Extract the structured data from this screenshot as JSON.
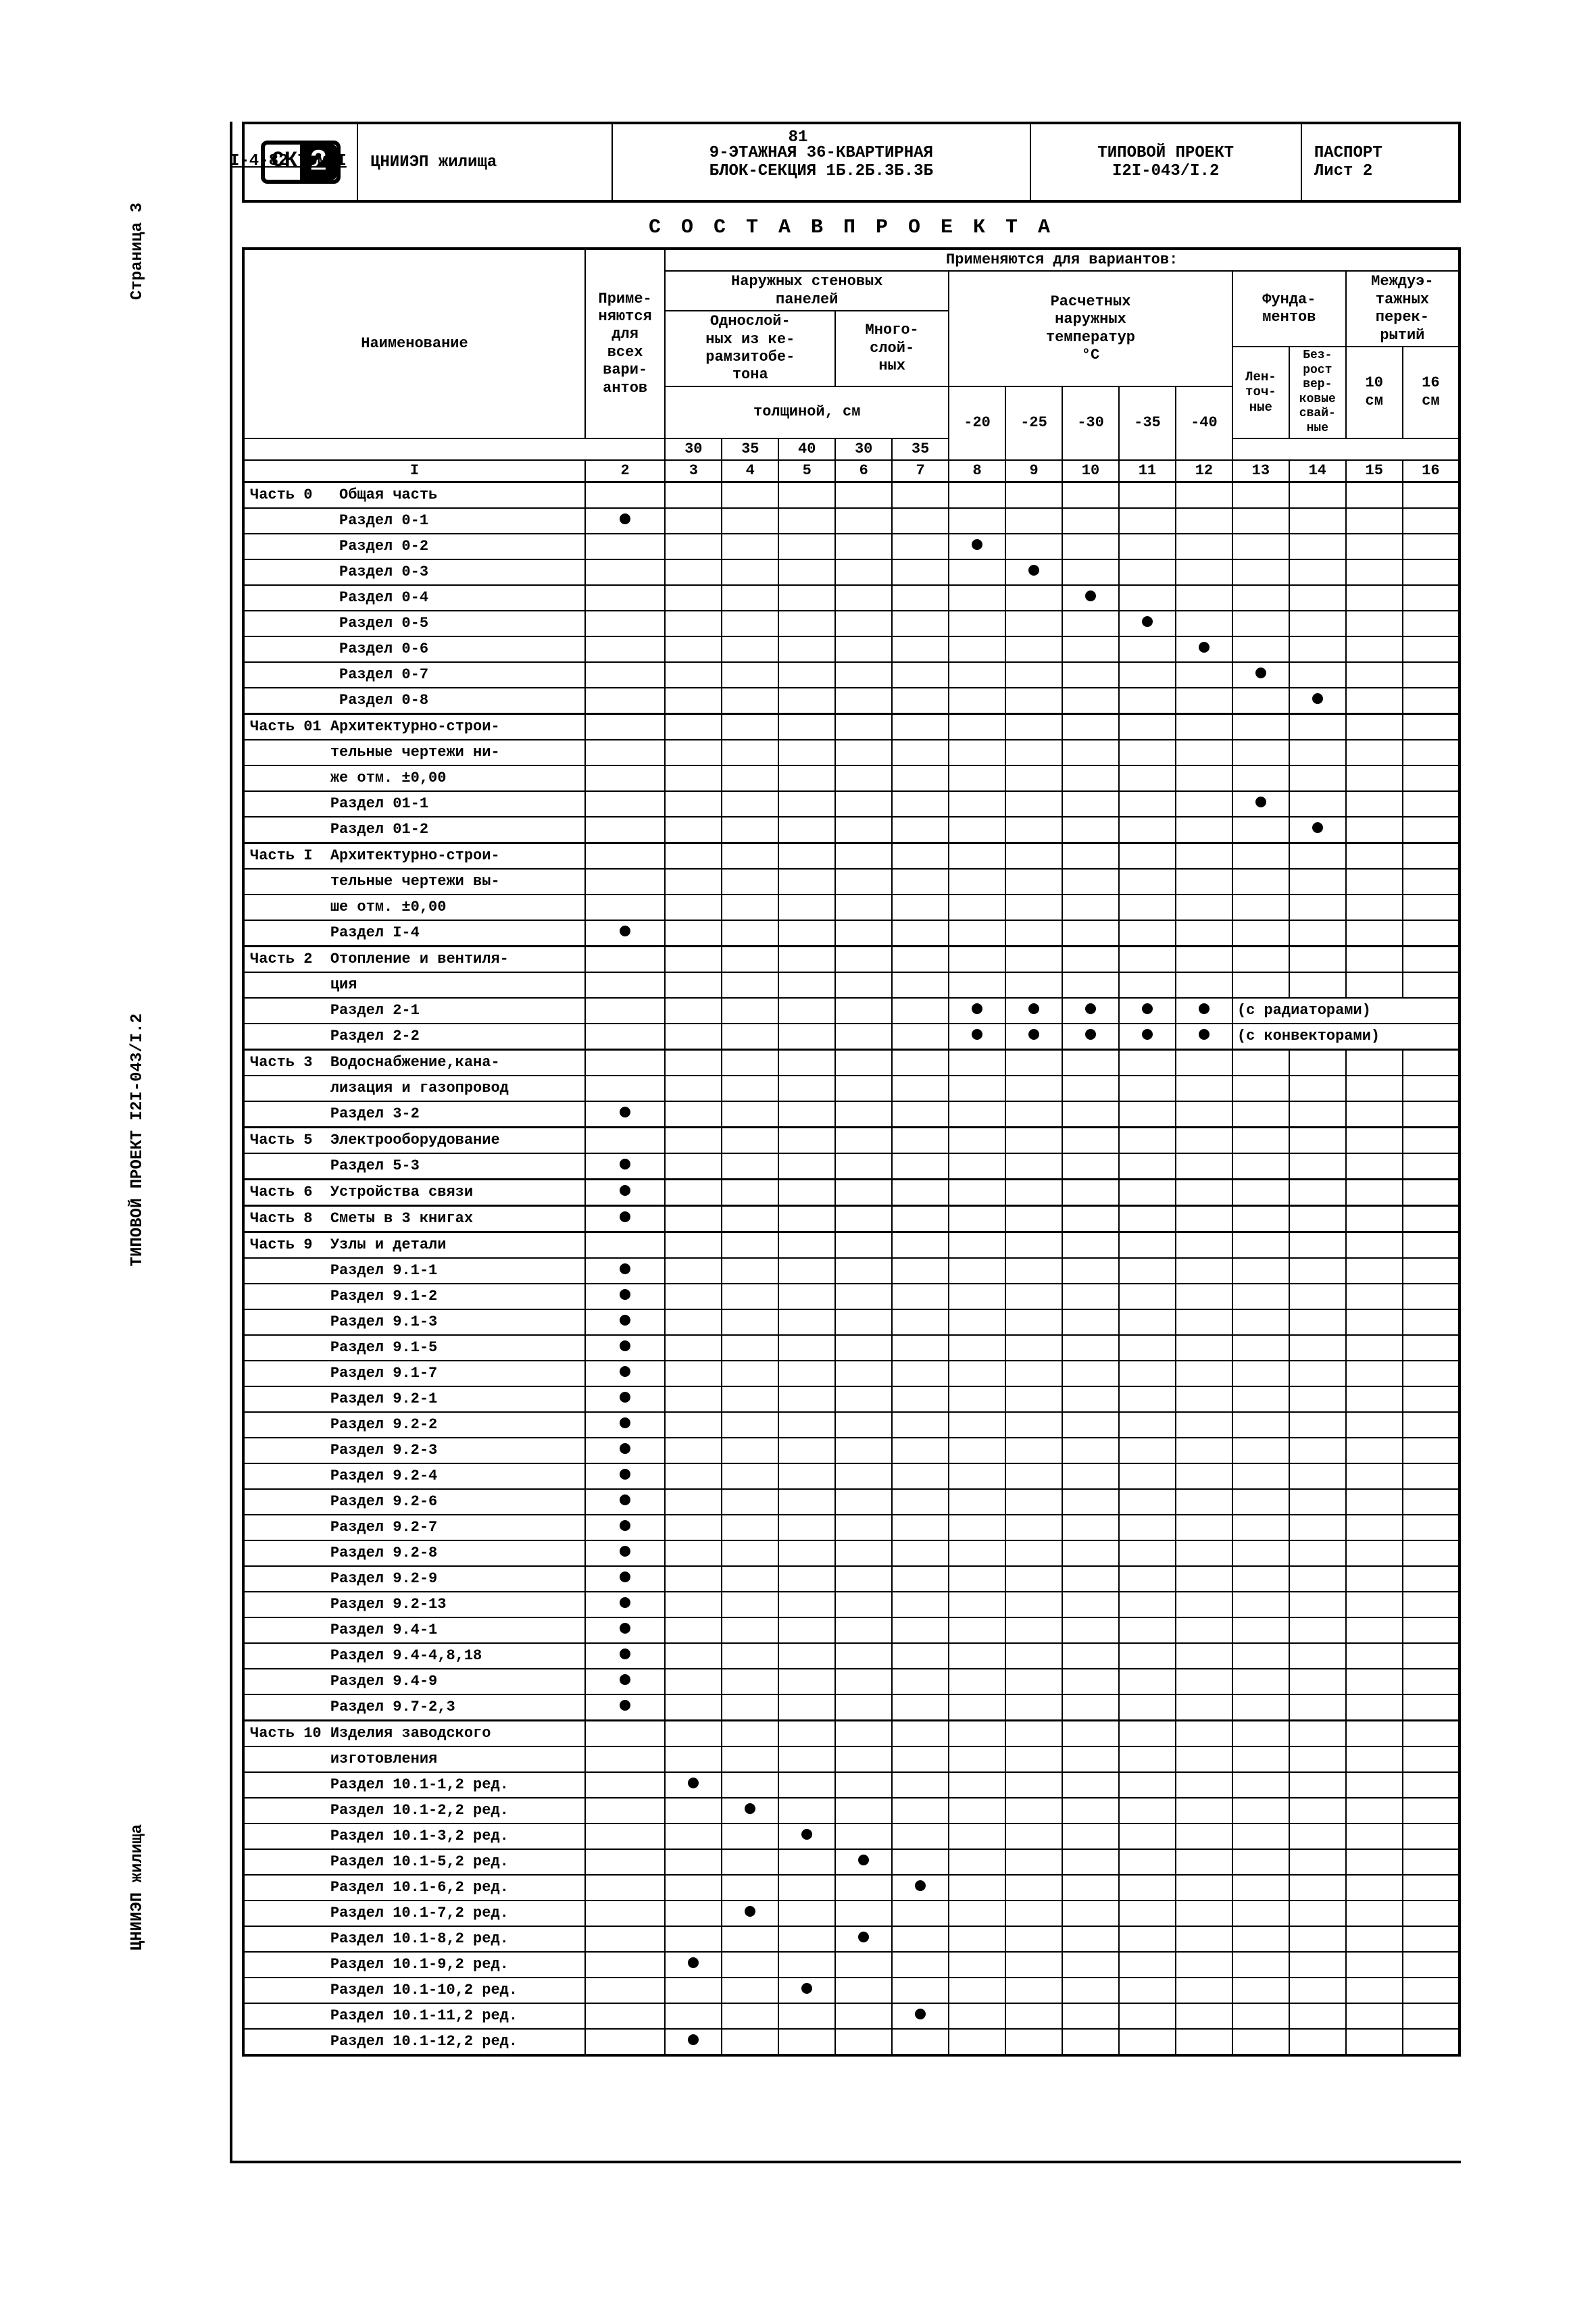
{
  "page_number": "81",
  "doc_number": "I-4-82 Том I",
  "side_labels": {
    "top": "Страница 3",
    "middle": "ТИПОВОЙ ПРОЕКТ I2I-043/I.2",
    "bottom": "ЦНИИЭП жилища"
  },
  "titleblock": {
    "org": "ЦНИИЭП жилища",
    "name1": "9-ЭТАЖНАЯ 36-КВАРТИРНАЯ",
    "name2": "БЛОК-СЕКЦИЯ 1Б.2Б.3Б.3Б",
    "proj1": "ТИПОВОЙ ПРОЕКТ",
    "proj2": "I2I-043/I.2",
    "pass1": "ПАСПОРТ",
    "pass2": "Лист  2"
  },
  "section_title": "С О С Т А В   П Р О Е К Т А",
  "header": {
    "col_name": "Наименование",
    "col_all": "Приме-\nняются\nдля\nвсех\nвари-\nантов",
    "variants": "Применяются для вариантов:",
    "panels": "Наружных стеновых\nпанелей",
    "panels_a": "Однослой-\nных из ке-\nрамзитобе-\nтона",
    "panels_b": "Много-\nслой-\nных",
    "thickness": "толщиной, см",
    "t30": "30",
    "t35": "35",
    "t40": "40",
    "mb30": "30",
    "mb35": "35",
    "temps": "Расчетных\nнаружных\nтемператур\n°C",
    "tm20": "-20",
    "tm25": "-25",
    "tm30": "-30",
    "tm35": "-35",
    "tm40": "-40",
    "found": "Фунда-\nментов",
    "found_a": "Лен-\nточ-\nные",
    "found_b": "Без-\nрост\nвер-\nковые\nсвай-\nные",
    "floors": "Междуэ-\nтажных\nперек-\nрытий",
    "fl_a": "10\nсм",
    "fl_b": "16\nсм",
    "nums": [
      "I",
      "2",
      "3",
      "4",
      "5",
      "6",
      "7",
      "8",
      "9",
      "10",
      "11",
      "12",
      "13",
      "14",
      "15",
      "16"
    ]
  },
  "note_radiators": "(с радиаторами)",
  "note_convectors": "(с конвекторами)",
  "rows": [
    {
      "label": "Часть 0   Общая часть",
      "first": true
    },
    {
      "label": "          Раздел 0-1",
      "dots": [
        2
      ]
    },
    {
      "label": "          Раздел 0-2",
      "dots": [
        8
      ]
    },
    {
      "label": "          Раздел 0-3",
      "dots": [
        9
      ]
    },
    {
      "label": "          Раздел 0-4",
      "dots": [
        10
      ]
    },
    {
      "label": "          Раздел 0-5",
      "dots": [
        11
      ]
    },
    {
      "label": "          Раздел 0-6",
      "dots": [
        12
      ]
    },
    {
      "label": "          Раздел 0-7",
      "dots": [
        13
      ]
    },
    {
      "label": "          Раздел 0-8",
      "dots": [
        14
      ]
    },
    {
      "label": "Часть 01 Архитектурно-строи-",
      "first": true
    },
    {
      "label": "         тельные чертежи ни-"
    },
    {
      "label": "         же отм. ±0,00"
    },
    {
      "label": "         Раздел 01-1",
      "dots": [
        13
      ]
    },
    {
      "label": "         Раздел 01-2",
      "dots": [
        14
      ]
    },
    {
      "label": "Часть I  Архитектурно-строи-",
      "first": true
    },
    {
      "label": "         тельные чертежи вы-"
    },
    {
      "label": "         ше отм. ±0,00"
    },
    {
      "label": "         Раздел I-4",
      "dots": [
        2
      ]
    },
    {
      "label": "Часть 2  Отопление и вентиля-",
      "first": true
    },
    {
      "label": "         ция"
    },
    {
      "label": "         Раздел 2-1",
      "dots": [
        8,
        9,
        10,
        11,
        12
      ],
      "note": "note_radiators",
      "notecol": 13
    },
    {
      "label": "         Раздел 2-2",
      "dots": [
        8,
        9,
        10,
        11,
        12
      ],
      "note": "note_convectors",
      "notecol": 13
    },
    {
      "label": "Часть 3  Водоснабжение,кана-",
      "first": true
    },
    {
      "label": "         лизация и газопровод"
    },
    {
      "label": "         Раздел 3-2",
      "dots": [
        2
      ]
    },
    {
      "label": "Часть 5  Электрооборудование",
      "first": true
    },
    {
      "label": "         Раздел 5-3",
      "dots": [
        2
      ]
    },
    {
      "label": "Часть 6  Устройства связи",
      "dots": [
        2
      ],
      "first": true
    },
    {
      "label": "Часть 8  Сметы в 3 книгах",
      "dots": [
        2
      ],
      "first": true
    },
    {
      "label": "Часть 9  Узлы и детали",
      "first": true
    },
    {
      "label": "         Раздел 9.1-1",
      "dots": [
        2
      ]
    },
    {
      "label": "         Раздел 9.1-2",
      "dots": [
        2
      ]
    },
    {
      "label": "         Раздел 9.1-3",
      "dots": [
        2
      ]
    },
    {
      "label": "         Раздел 9.1-5",
      "dots": [
        2
      ]
    },
    {
      "label": "         Раздел 9.1-7",
      "dots": [
        2
      ]
    },
    {
      "label": "         Раздел 9.2-1",
      "dots": [
        2
      ]
    },
    {
      "label": "         Раздел 9.2-2",
      "dots": [
        2
      ]
    },
    {
      "label": "         Раздел 9.2-3",
      "dots": [
        2
      ]
    },
    {
      "label": "         Раздел 9.2-4",
      "dots": [
        2
      ]
    },
    {
      "label": "         Раздел 9.2-6",
      "dots": [
        2
      ]
    },
    {
      "label": "         Раздел 9.2-7",
      "dots": [
        2
      ]
    },
    {
      "label": "         Раздел 9.2-8",
      "dots": [
        2
      ]
    },
    {
      "label": "         Раздел 9.2-9",
      "dots": [
        2
      ]
    },
    {
      "label": "         Раздел 9.2-13",
      "dots": [
        2
      ]
    },
    {
      "label": "         Раздел 9.4-1",
      "dots": [
        2
      ]
    },
    {
      "label": "         Раздел 9.4-4,8,18",
      "dots": [
        2
      ]
    },
    {
      "label": "         Раздел 9.4-9",
      "dots": [
        2
      ]
    },
    {
      "label": "         Раздел 9.7-2,3",
      "dots": [
        2
      ]
    },
    {
      "label": "Часть 10 Изделия заводского",
      "first": true
    },
    {
      "label": "         изготовления"
    },
    {
      "label": "         Раздел 10.1-1,2 ред.",
      "dots": [
        3
      ]
    },
    {
      "label": "         Раздел 10.1-2,2 ред.",
      "dots": [
        4
      ]
    },
    {
      "label": "         Раздел 10.1-3,2 ред.",
      "dots": [
        5
      ]
    },
    {
      "label": "         Раздел 10.1-5,2 ред.",
      "dots": [
        6
      ]
    },
    {
      "label": "         Раздел 10.1-6,2 ред.",
      "dots": [
        7
      ]
    },
    {
      "label": "         Раздел 10.1-7,2 ред.",
      "dots": [
        4
      ]
    },
    {
      "label": "         Раздел 10.1-8,2 ред.",
      "dots": [
        6
      ]
    },
    {
      "label": "         Раздел 10.1-9,2 ред.",
      "dots": [
        3
      ]
    },
    {
      "label": "         Раздел 10.1-10,2 ред.",
      "dots": [
        5
      ]
    },
    {
      "label": "         Раздел 10.1-11,2 ред.",
      "dots": [
        7
      ]
    },
    {
      "label": "         Раздел 10.1-12,2 ред.",
      "dots": [
        3
      ]
    }
  ]
}
